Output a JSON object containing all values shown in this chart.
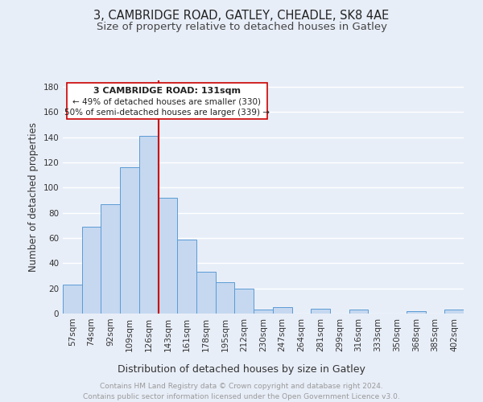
{
  "title": "3, CAMBRIDGE ROAD, GATLEY, CHEADLE, SK8 4AE",
  "subtitle": "Size of property relative to detached houses in Gatley",
  "xlabel": "Distribution of detached houses by size in Gatley",
  "ylabel": "Number of detached properties",
  "bar_labels": [
    "57sqm",
    "74sqm",
    "92sqm",
    "109sqm",
    "126sqm",
    "143sqm",
    "161sqm",
    "178sqm",
    "195sqm",
    "212sqm",
    "230sqm",
    "247sqm",
    "264sqm",
    "281sqm",
    "299sqm",
    "316sqm",
    "333sqm",
    "350sqm",
    "368sqm",
    "385sqm",
    "402sqm"
  ],
  "bar_values": [
    23,
    69,
    87,
    116,
    141,
    92,
    59,
    33,
    25,
    20,
    3,
    5,
    0,
    4,
    0,
    3,
    0,
    0,
    2,
    0,
    3
  ],
  "bar_color": "#c5d8f0",
  "bar_edge_color": "#5b9bd5",
  "property_line_x": 4.5,
  "property_line_label": "3 CAMBRIDGE ROAD: 131sqm",
  "annotation_line1": "← 49% of detached houses are smaller (330)",
  "annotation_line2": "50% of semi-detached houses are larger (339) →",
  "annotation_box_color": "#ffffff",
  "annotation_box_edge": "#cc0000",
  "property_line_color": "#cc0000",
  "ylim": [
    0,
    185
  ],
  "yticks": [
    0,
    20,
    40,
    60,
    80,
    100,
    120,
    140,
    160,
    180
  ],
  "footer1": "Contains HM Land Registry data © Crown copyright and database right 2024.",
  "footer2": "Contains public sector information licensed under the Open Government Licence v3.0.",
  "background_color": "#e8eef8",
  "plot_bg_color": "#e8eef8",
  "grid_color": "#ffffff",
  "title_fontsize": 10.5,
  "subtitle_fontsize": 9.5,
  "axis_label_fontsize": 8.5,
  "tick_fontsize": 7.5,
  "footer_fontsize": 6.5,
  "annotation_label_fontsize": 8,
  "annotation_text_fontsize": 7.5
}
